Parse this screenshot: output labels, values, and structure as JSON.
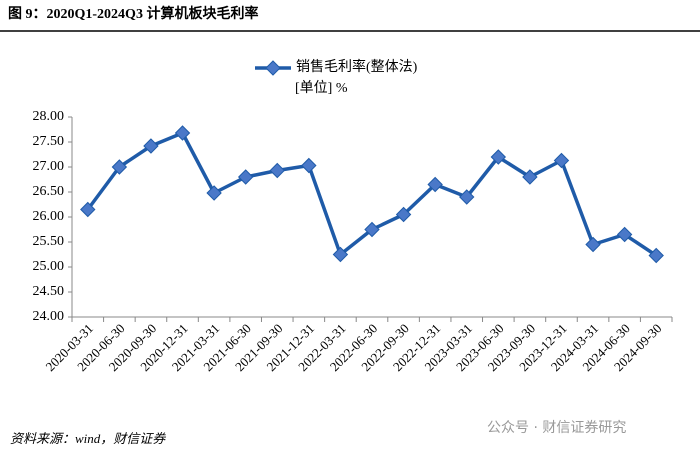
{
  "header": {
    "title": "图 9：2020Q1-2024Q3 计算机板块毛利率"
  },
  "chart_data": {
    "type": "line",
    "unit_label": "[单位] %",
    "categories": [
      "2020-03-31",
      "2020-06-30",
      "2020-09-30",
      "2020-12-31",
      "2021-03-31",
      "2021-06-30",
      "2021-09-30",
      "2021-12-31",
      "2022-03-31",
      "2022-06-30",
      "2022-09-30",
      "2022-12-31",
      "2023-03-31",
      "2023-06-30",
      "2023-09-30",
      "2023-12-31",
      "2024-03-31",
      "2024-06-30",
      "2024-09-30"
    ],
    "series": [
      {
        "name": "销售毛利率(整体法)",
        "color": "#1f5ba8",
        "values": [
          26.15,
          27.0,
          27.42,
          27.68,
          26.48,
          26.8,
          26.93,
          27.03,
          25.25,
          25.75,
          26.05,
          26.65,
          26.4,
          27.2,
          26.8,
          27.13,
          25.45,
          25.65,
          25.23
        ]
      }
    ],
    "ylim": [
      24,
      28
    ],
    "yticks": [
      {
        "value": 24,
        "label": "24.00"
      },
      {
        "value": 24.5,
        "label": "24.50"
      },
      {
        "value": 25,
        "label": "25.00"
      },
      {
        "value": 25.5,
        "label": "25.50"
      },
      {
        "value": 26,
        "label": "26.00"
      },
      {
        "value": 26.5,
        "label": "26.50"
      },
      {
        "value": 27,
        "label": "27.00"
      },
      {
        "value": 27.5,
        "label": "27.50"
      },
      {
        "value": 28,
        "label": "28.00"
      }
    ],
    "grid": false
  },
  "footer": {
    "source": "资料来源：wind，财信证券",
    "watermark": "公众号 · 财信证券研究"
  }
}
